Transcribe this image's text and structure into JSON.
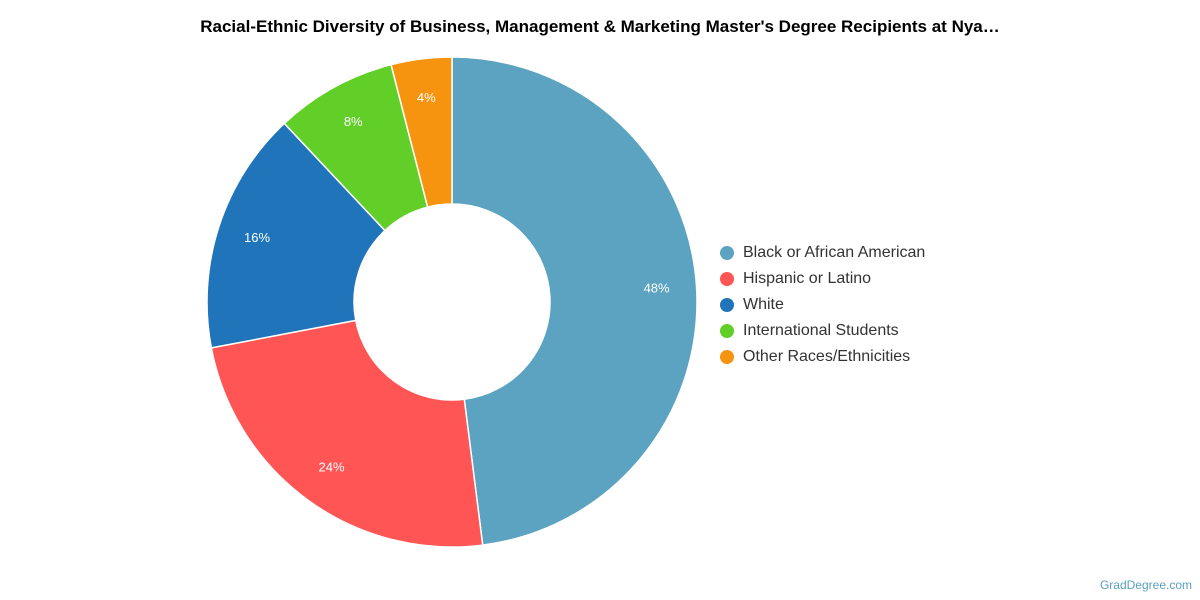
{
  "chart_data": {
    "type": "pie",
    "variant": "donut",
    "title": "Racial-Ethnic Diversity of Business, Management & Marketing Master's Degree Recipients at Nya…",
    "categories": [
      "Black or African American",
      "Hispanic or Latino",
      "White",
      "International Students",
      "Other Races/Ethnicities"
    ],
    "values": [
      48,
      24,
      16,
      8,
      4
    ],
    "labels": [
      "48%",
      "24%",
      "16%",
      "8%",
      "4%"
    ],
    "colors": [
      "#5ba3c0",
      "#ff5555",
      "#1f74ba",
      "#62cf28",
      "#f7940f"
    ],
    "legend_position": "right"
  },
  "credit": "GradDegree.com"
}
